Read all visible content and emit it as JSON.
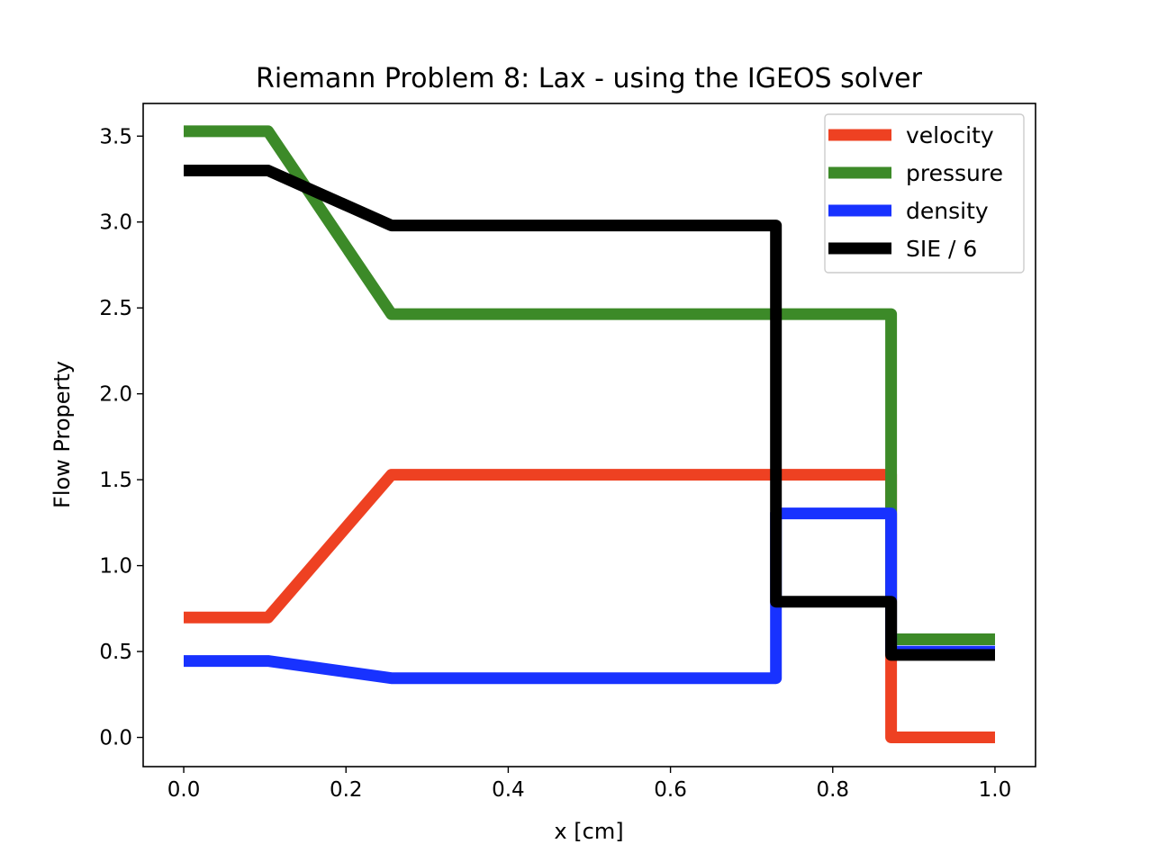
{
  "chart_data": {
    "type": "line",
    "title": "Riemann Problem 8: Lax - using the IGEOS solver",
    "xlabel": "x [cm]",
    "ylabel": "Flow Property",
    "xlim": [
      -0.05,
      1.05
    ],
    "ylim": [
      -0.17,
      3.69
    ],
    "xticks": [
      0.0,
      0.2,
      0.4,
      0.6,
      0.8,
      1.0
    ],
    "xtick_labels": [
      "0.0",
      "0.2",
      "0.4",
      "0.6",
      "0.8",
      "1.0"
    ],
    "yticks": [
      0.0,
      0.5,
      1.0,
      1.5,
      2.0,
      2.5,
      3.0,
      3.5
    ],
    "ytick_labels": [
      "0.0",
      "0.5",
      "1.0",
      "1.5",
      "2.0",
      "2.5",
      "3.0",
      "3.5"
    ],
    "grid": false,
    "legend_position": "top-right",
    "series": [
      {
        "name": "velocity",
        "color": "#ee4122",
        "points": [
          [
            0.0,
            0.698
          ],
          [
            0.104,
            0.698
          ],
          [
            0.256,
            1.529
          ],
          [
            0.872,
            1.529
          ],
          [
            0.872,
            0.0
          ],
          [
            1.0,
            0.0
          ]
        ]
      },
      {
        "name": "pressure",
        "color": "#3c8a28",
        "points": [
          [
            0.0,
            3.528
          ],
          [
            0.104,
            3.528
          ],
          [
            0.256,
            2.464
          ],
          [
            0.872,
            2.464
          ],
          [
            0.872,
            0.571
          ],
          [
            1.0,
            0.571
          ]
        ]
      },
      {
        "name": "density",
        "color": "#1832ff",
        "points": [
          [
            0.0,
            0.445
          ],
          [
            0.104,
            0.445
          ],
          [
            0.256,
            0.345
          ],
          [
            0.73,
            0.345
          ],
          [
            0.73,
            1.304
          ],
          [
            0.872,
            1.304
          ],
          [
            0.872,
            0.5
          ],
          [
            1.0,
            0.5
          ]
        ]
      },
      {
        "name": "SIE / 6",
        "color": "#000000",
        "points": [
          [
            0.0,
            3.3
          ],
          [
            0.104,
            3.3
          ],
          [
            0.256,
            2.98
          ],
          [
            0.73,
            2.98
          ],
          [
            0.73,
            0.79
          ],
          [
            0.872,
            0.79
          ],
          [
            0.872,
            0.48
          ],
          [
            1.0,
            0.48
          ]
        ]
      }
    ]
  }
}
